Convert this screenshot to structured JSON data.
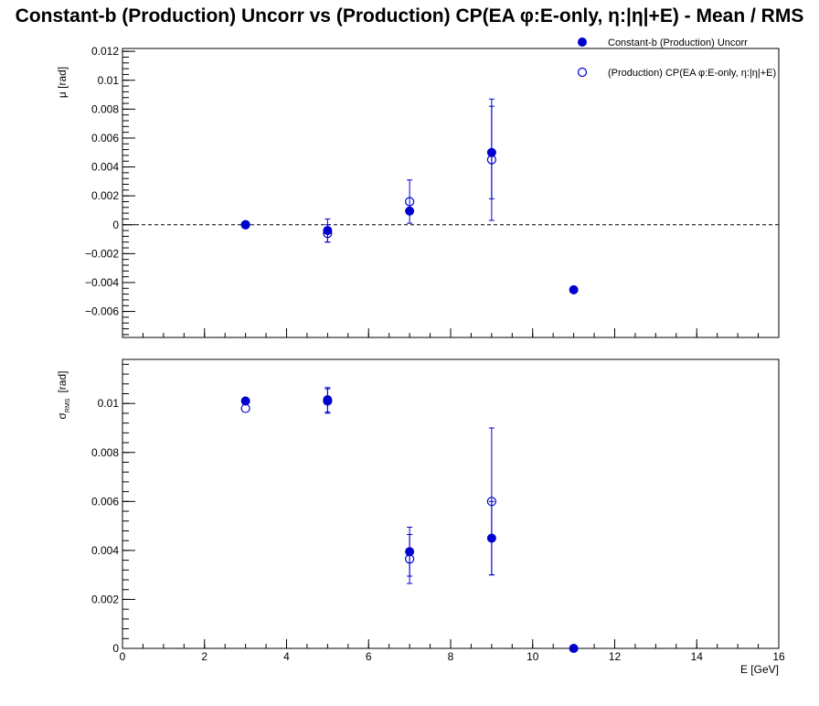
{
  "chart_data": {
    "type": "scatter",
    "title": "Constant-b (Production) Uncorr vs (Production) CP(EA φ:E-only, η:|η|+E)  -  Mean / RMS",
    "xlabel": "E  [GeV]",
    "xlim": [
      0,
      16
    ],
    "x_ticks": [
      0,
      2,
      4,
      6,
      8,
      10,
      12,
      14,
      16
    ],
    "x_tick_labels": [
      "0",
      "2",
      "4",
      "6",
      "8",
      "10",
      "12",
      "14",
      "16"
    ],
    "legend_position": "top-right",
    "colors": {
      "series": "#0000cc",
      "frame": "#000000",
      "zero_line": "#000000"
    },
    "legend": [
      {
        "label": "Constant-b (Production) Uncorr",
        "marker": "filled-circle"
      },
      {
        "label": "(Production) CP(EA φ:E-only, η:|η|+E)",
        "marker": "open-circle"
      }
    ],
    "panels": [
      {
        "id": "mean",
        "ylabel": "μ  [rad]",
        "ylim": [
          -0.0078,
          0.0122
        ],
        "y_ticks": [
          -0.006,
          -0.004,
          -0.002,
          0,
          0.002,
          0.004,
          0.006,
          0.008,
          0.01,
          0.012
        ],
        "y_tick_labels": [
          "−0.006",
          "−0.004",
          "−0.002",
          "0",
          "0.002",
          "0.004",
          "0.006",
          "0.008",
          "0.01",
          "0.012"
        ],
        "zero_line": true,
        "series": [
          {
            "marker": "filled-circle",
            "x": [
              3,
              5,
              7,
              9,
              11
            ],
            "y": [
              0.0,
              -0.0004,
              0.00095,
              0.005,
              -0.0045
            ],
            "err": [
              0.0,
              0.0008,
              0.0,
              0.0032,
              0.0
            ]
          },
          {
            "marker": "open-circle",
            "x": [
              3,
              5,
              7,
              9
            ],
            "y": [
              0.0,
              -0.0006,
              0.0016,
              0.0045
            ],
            "err": [
              0.0,
              0.0006,
              0.0015,
              0.0042
            ]
          }
        ]
      },
      {
        "id": "rms",
        "ylabel": "σ",
        "ylabel_sub": "RMS",
        "ylabel_unit": "[rad]",
        "ylim": [
          0,
          0.0118
        ],
        "y_ticks": [
          0,
          0.002,
          0.004,
          0.006,
          0.008,
          0.01
        ],
        "y_tick_labels": [
          "0",
          "0.002",
          "0.004",
          "0.006",
          "0.008",
          "0.01"
        ],
        "zero_line": false,
        "series": [
          {
            "marker": "filled-circle",
            "x": [
              3,
              5,
              7,
              9,
              11
            ],
            "y": [
              0.0101,
              0.01015,
              0.00395,
              0.0045,
              0.0
            ],
            "err": [
              0.0,
              0.0005,
              0.001,
              0.0015,
              0.0
            ]
          },
          {
            "marker": "open-circle",
            "x": [
              3,
              5,
              7,
              9
            ],
            "y": [
              0.0098,
              0.0101,
              0.00365,
              0.006
            ],
            "err": [
              0.0,
              0.0005,
              0.001,
              0.003
            ]
          }
        ]
      }
    ]
  }
}
